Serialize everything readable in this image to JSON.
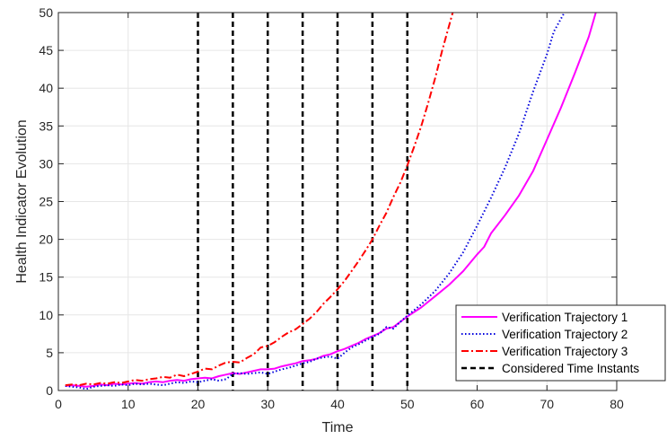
{
  "chart_data": {
    "type": "line",
    "xlabel": "Time",
    "ylabel": "Health Indicator Evolution",
    "xlim": [
      0,
      80
    ],
    "ylim": [
      0,
      50
    ],
    "xticks": [
      0,
      10,
      20,
      30,
      40,
      50,
      60,
      70,
      80
    ],
    "yticks": [
      0,
      5,
      10,
      15,
      20,
      25,
      30,
      35,
      40,
      45,
      50
    ],
    "grid": true,
    "legend_position": "bottom-right",
    "series": [
      {
        "name": "Verification Trajectory 1",
        "color": "#ff00ff",
        "style": "solid",
        "x": [
          1,
          2,
          3,
          4,
          5,
          6,
          7,
          8,
          9,
          10,
          11,
          12,
          13,
          14,
          15,
          16,
          17,
          18,
          19,
          20,
          21,
          22,
          23,
          24,
          25,
          26,
          27,
          28,
          29,
          30,
          31,
          32,
          33,
          34,
          35,
          36,
          37,
          38,
          39,
          40,
          41,
          42,
          43,
          44,
          45,
          46,
          47,
          48,
          49,
          50,
          52,
          54,
          56,
          58,
          60,
          61,
          62,
          64,
          66,
          68,
          70,
          72,
          74,
          76,
          77
        ],
        "y": [
          0.6,
          0.7,
          0.6,
          0.5,
          0.6,
          0.8,
          0.7,
          0.9,
          0.8,
          0.9,
          1.0,
          0.9,
          1.1,
          1.2,
          1.1,
          1.3,
          1.4,
          1.3,
          1.5,
          1.6,
          1.7,
          1.6,
          1.9,
          2.1,
          2.3,
          2.2,
          2.4,
          2.6,
          2.8,
          2.8,
          2.9,
          3.2,
          3.4,
          3.6,
          3.9,
          4.0,
          4.2,
          4.6,
          4.8,
          5.2,
          5.5,
          5.9,
          6.3,
          6.8,
          7.2,
          7.6,
          8.2,
          8.4,
          9.1,
          9.8,
          11.0,
          12.5,
          14.0,
          15.8,
          18.0,
          19.0,
          20.8,
          23.2,
          25.8,
          29.0,
          33.2,
          37.4,
          42.0,
          46.8,
          50.0
        ]
      },
      {
        "name": "Verification Trajectory 2",
        "color": "#0000dd",
        "style": "dotted",
        "x": [
          1,
          2,
          3,
          4,
          5,
          6,
          7,
          8,
          9,
          10,
          11,
          12,
          13,
          14,
          15,
          16,
          17,
          18,
          19,
          20,
          21,
          22,
          23,
          24,
          25,
          26,
          27,
          28,
          29,
          30,
          31,
          32,
          33,
          34,
          35,
          36,
          37,
          38,
          39,
          40,
          41,
          42,
          43,
          44,
          45,
          46,
          47,
          48,
          49,
          50,
          52,
          54,
          56,
          58,
          60,
          62,
          64,
          66,
          68,
          70,
          71,
          72.5
        ],
        "y": [
          0.6,
          0.5,
          0.4,
          0.2,
          0.5,
          0.6,
          0.7,
          0.6,
          0.8,
          0.7,
          0.9,
          0.8,
          0.9,
          0.8,
          0.7,
          0.9,
          1.1,
          1.0,
          1.2,
          1.1,
          1.3,
          1.5,
          1.3,
          1.5,
          2.2,
          2.3,
          2.2,
          2.3,
          2.4,
          2.2,
          2.5,
          2.8,
          3.0,
          3.3,
          3.6,
          3.8,
          4.2,
          4.4,
          4.5,
          4.2,
          5.0,
          5.7,
          6.1,
          6.6,
          7.1,
          7.5,
          8.4,
          8.2,
          9.1,
          9.9,
          11.4,
          13.2,
          15.5,
          18.3,
          21.8,
          25.5,
          29.5,
          34.0,
          39.5,
          44.5,
          47.5,
          50.0
        ]
      },
      {
        "name": "Verification Trajectory 3",
        "color": "#ff0000",
        "style": "dashdot",
        "x": [
          1,
          2,
          3,
          4,
          5,
          6,
          7,
          8,
          9,
          10,
          11,
          12,
          13,
          14,
          15,
          16,
          17,
          18,
          19,
          20,
          21,
          22,
          23,
          24,
          25,
          26,
          27,
          28,
          29,
          30,
          31,
          32,
          33,
          34,
          35,
          36,
          37,
          38,
          39,
          40,
          41,
          42,
          43,
          44,
          45,
          46,
          47,
          48,
          49,
          50,
          51,
          52,
          53,
          54,
          55,
          56.5
        ],
        "y": [
          0.7,
          0.8,
          0.7,
          0.9,
          0.8,
          1.0,
          0.9,
          1.1,
          1.0,
          1.2,
          1.4,
          1.3,
          1.5,
          1.6,
          1.8,
          1.7,
          2.1,
          1.9,
          2.2,
          2.5,
          2.9,
          2.8,
          3.3,
          3.7,
          3.8,
          3.7,
          4.3,
          4.8,
          5.7,
          5.9,
          6.4,
          7.1,
          7.7,
          8.1,
          8.8,
          9.5,
          10.4,
          11.5,
          12.4,
          13.4,
          14.5,
          15.8,
          17.1,
          18.5,
          20.0,
          21.8,
          23.5,
          25.6,
          27.5,
          29.8,
          32.3,
          35.0,
          38.1,
          41.4,
          45.0,
          50.0
        ]
      },
      {
        "name": "Considered Time Instants",
        "color": "#000000",
        "style": "dashed",
        "vlines": [
          20,
          25,
          30,
          35,
          40,
          45,
          50
        ]
      }
    ]
  }
}
